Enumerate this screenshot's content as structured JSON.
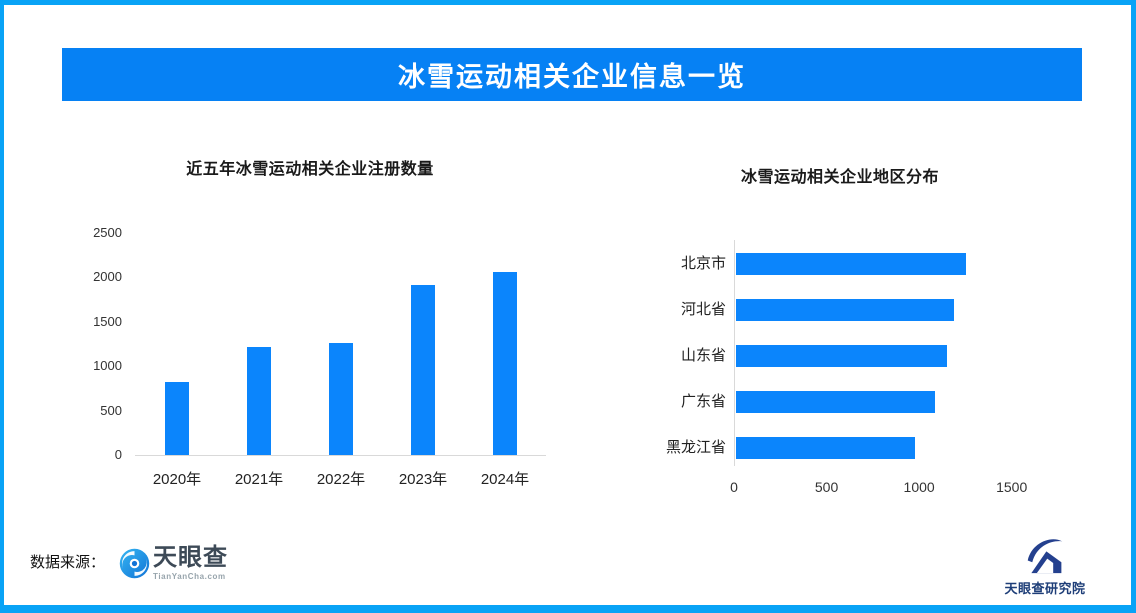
{
  "banner": {
    "title": "冰雪运动相关企业信息一览"
  },
  "colors": {
    "frame_border": "#09A3F6",
    "banner_bg": "#0681F4",
    "banner_text": "#FFFFFF",
    "bar_blue": "#0B85FC",
    "axis_line": "#D9D9D9",
    "chart_title_text": "#1A1A1A",
    "tick_text": "#333333",
    "tianyancha_name_text": "#3D4A57",
    "tianyancha_domain_text": "#97A4AC",
    "research_text": "#1E3E78"
  },
  "footer": {
    "source_label": "数据来源：",
    "tianyancha": {
      "icon": "tianyancha-swirl-icon",
      "name": "天眼查",
      "domain": "TianYanCha.com"
    },
    "research": {
      "icon": "research-eye-icon",
      "name": "天眼查研究院"
    }
  },
  "chart_data": [
    {
      "type": "bar",
      "orientation": "vertical",
      "title": "近五年冰雪运动相关企业注册数量",
      "categories": [
        "2020年",
        "2021年",
        "2022年",
        "2023年",
        "2024年"
      ],
      "values": [
        820,
        1215,
        1260,
        1910,
        2060
      ],
      "yticks": [
        0,
        500,
        1000,
        1500,
        2000,
        2500
      ],
      "ylim": [
        0,
        2500
      ],
      "xlabel": "",
      "ylabel": "",
      "grid": false,
      "legend": false,
      "bar_color": "#0B85FC"
    },
    {
      "type": "bar",
      "orientation": "horizontal",
      "title": "冰雪运动相关企业地区分布",
      "categories": [
        "北京市",
        "河北省",
        "山东省",
        "广东省",
        "黑龙江省"
      ],
      "values": [
        1240,
        1180,
        1140,
        1075,
        965
      ],
      "xticks": [
        0,
        500,
        1000,
        1500
      ],
      "xlim": [
        0,
        1500
      ],
      "xlabel": "",
      "ylabel": "",
      "grid": false,
      "legend": false,
      "bar_color": "#0B85FC"
    }
  ]
}
